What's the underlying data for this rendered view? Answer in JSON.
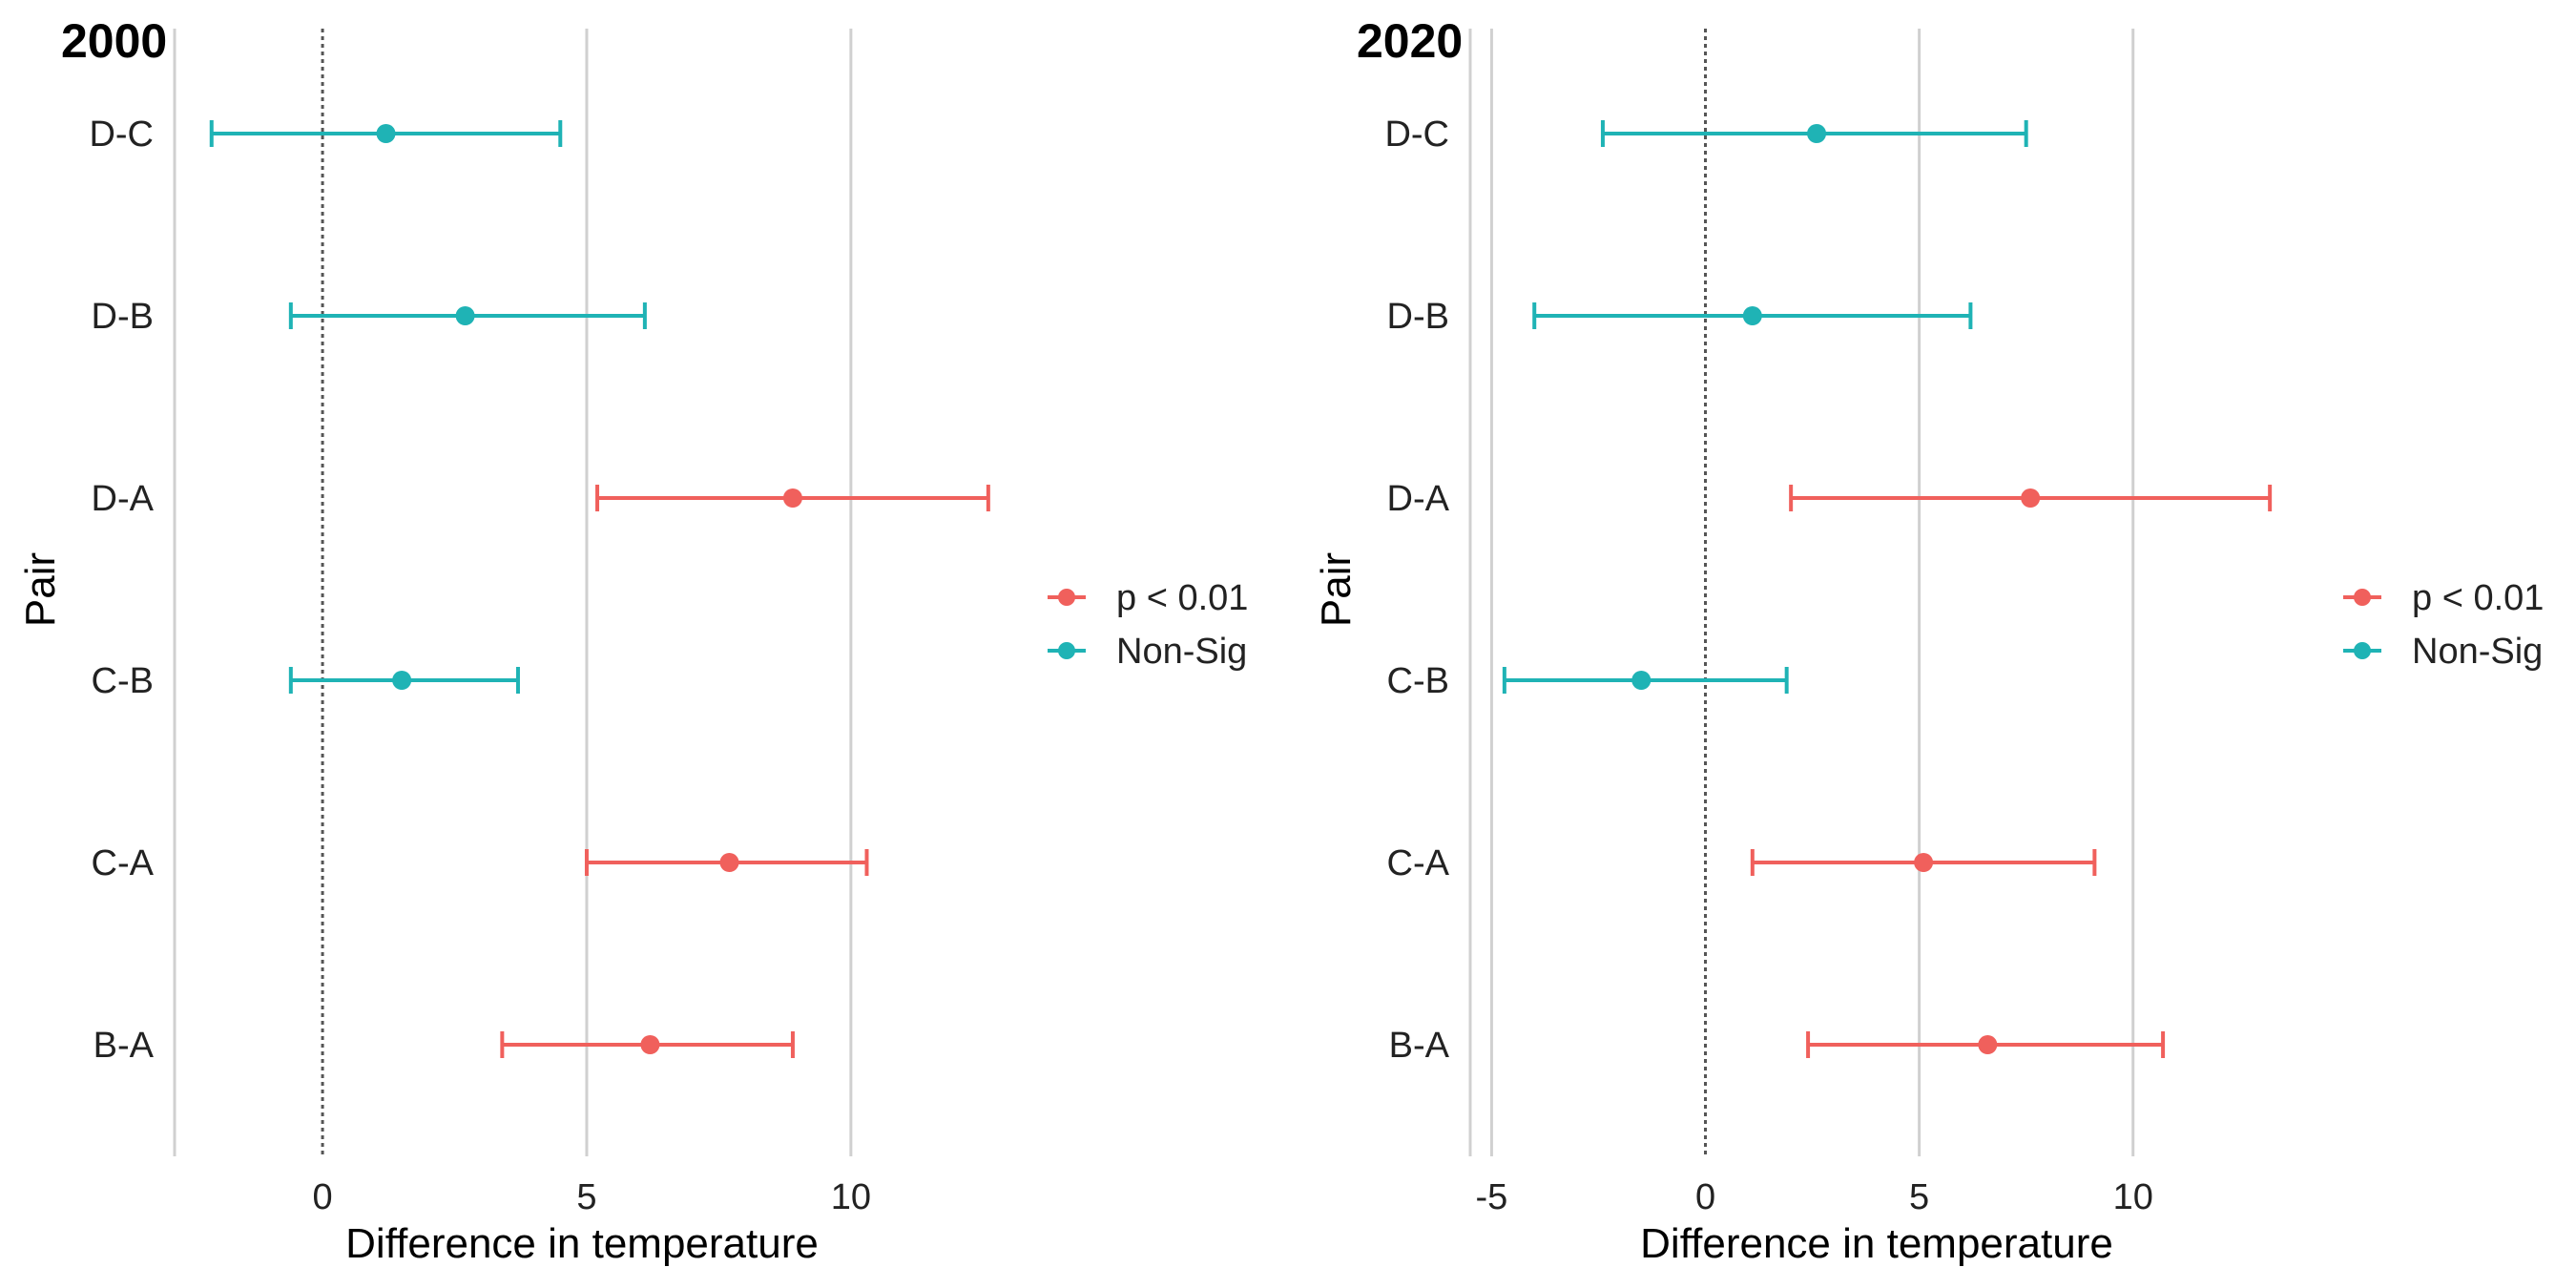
{
  "colors": {
    "sig": "#F0605C",
    "nonsig": "#1FB3B5",
    "grid": "#D0D0D0",
    "zero": "#555555"
  },
  "chart_data": [
    {
      "type": "errorbar",
      "title": "2000",
      "xlabel": "Difference in temperature",
      "ylabel": "Pair",
      "xlim": [
        -2.8,
        13
      ],
      "xticks": [
        0,
        5,
        10
      ],
      "xtick_labels": [
        "0",
        "5",
        "10"
      ],
      "categories": [
        "D-C",
        "D-B",
        "D-A",
        "C-B",
        "C-A",
        "B-A"
      ],
      "points": [
        {
          "pair": "D-C",
          "estimate": 1.2,
          "lower": -2.1,
          "upper": 4.5,
          "group": "nonsig"
        },
        {
          "pair": "D-B",
          "estimate": 2.7,
          "lower": -0.6,
          "upper": 6.1,
          "group": "nonsig"
        },
        {
          "pair": "D-A",
          "estimate": 8.9,
          "lower": 5.2,
          "upper": 12.6,
          "group": "sig"
        },
        {
          "pair": "C-B",
          "estimate": 1.5,
          "lower": -0.6,
          "upper": 3.7,
          "group": "nonsig"
        },
        {
          "pair": "C-A",
          "estimate": 7.7,
          "lower": 5.0,
          "upper": 10.3,
          "group": "sig"
        },
        {
          "pair": "B-A",
          "estimate": 6.2,
          "lower": 3.4,
          "upper": 8.9,
          "group": "sig"
        }
      ],
      "legend": [
        {
          "label": "p < 0.01",
          "group": "sig"
        },
        {
          "label": "Non-Sig",
          "group": "nonsig"
        }
      ],
      "grid": true,
      "reference_line": 0
    },
    {
      "type": "errorbar",
      "title": "2020",
      "xlabel": "Difference in temperature",
      "ylabel": "Pair",
      "xlim": [
        -5.5,
        14
      ],
      "xticks": [
        -5,
        0,
        5,
        10
      ],
      "xtick_labels": [
        "-5",
        "0",
        "5",
        "10"
      ],
      "categories": [
        "D-C",
        "D-B",
        "D-A",
        "C-B",
        "C-A",
        "B-A"
      ],
      "points": [
        {
          "pair": "D-C",
          "estimate": 2.6,
          "lower": -2.4,
          "upper": 7.5,
          "group": "nonsig"
        },
        {
          "pair": "D-B",
          "estimate": 1.1,
          "lower": -4.0,
          "upper": 6.2,
          "group": "nonsig"
        },
        {
          "pair": "D-A",
          "estimate": 7.6,
          "lower": 2.0,
          "upper": 13.2,
          "group": "sig"
        },
        {
          "pair": "C-B",
          "estimate": -1.5,
          "lower": -4.7,
          "upper": 1.9,
          "group": "nonsig"
        },
        {
          "pair": "C-A",
          "estimate": 5.1,
          "lower": 1.1,
          "upper": 9.1,
          "group": "sig"
        },
        {
          "pair": "B-A",
          "estimate": 6.6,
          "lower": 2.4,
          "upper": 10.7,
          "group": "sig"
        }
      ],
      "legend": [
        {
          "label": "p < 0.01",
          "group": "sig"
        },
        {
          "label": "Non-Sig",
          "group": "nonsig"
        }
      ],
      "grid": true,
      "reference_line": 0
    }
  ]
}
